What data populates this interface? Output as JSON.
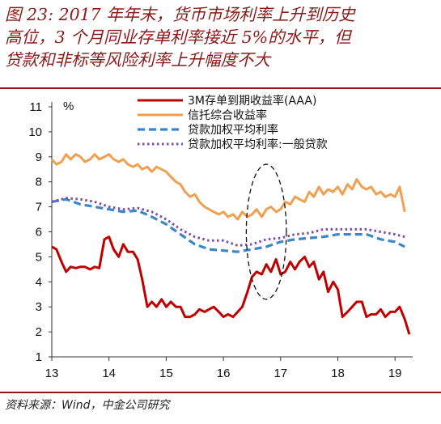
{
  "title_lines": [
    "图 23: 2017 年年末，货币市场利率上升到历史",
    "高位，3 个月同业存单利率接近 5%的水平，但",
    "贷款和非标等风险利率上升幅度不大"
  ],
  "source": "资料来源：Wind，中金公司研究",
  "chart_data": {
    "type": "line",
    "ylabel": "%",
    "ylim": [
      1,
      11
    ],
    "yticks": [
      "1",
      "2",
      "3",
      "4",
      "5",
      "6",
      "7",
      "8",
      "9",
      "10",
      "11"
    ],
    "xlim": [
      2013.0,
      2019.25
    ],
    "xticks": [
      "13",
      "14",
      "15",
      "16",
      "17",
      "18",
      "19"
    ],
    "grid": false,
    "legend_position": "top-center",
    "series": [
      {
        "name": "3M存单到期收益率(AAA)",
        "color": "#c00000",
        "style": "solid",
        "points": [
          [
            2013.0,
            5.4
          ],
          [
            2013.08,
            5.3
          ],
          [
            2013.17,
            4.8
          ],
          [
            2013.25,
            4.4
          ],
          [
            2013.33,
            4.6
          ],
          [
            2013.42,
            4.55
          ],
          [
            2013.5,
            4.6
          ],
          [
            2013.58,
            4.6
          ],
          [
            2013.67,
            4.5
          ],
          [
            2013.75,
            4.6
          ],
          [
            2013.83,
            4.55
          ],
          [
            2013.92,
            5.7
          ],
          [
            2014.0,
            5.8
          ],
          [
            2014.08,
            5.3
          ],
          [
            2014.17,
            5.0
          ],
          [
            2014.25,
            5.5
          ],
          [
            2014.33,
            5.2
          ],
          [
            2014.42,
            5.2
          ],
          [
            2014.5,
            4.9
          ],
          [
            2014.58,
            4.1
          ],
          [
            2014.67,
            3.0
          ],
          [
            2014.75,
            3.2
          ],
          [
            2014.83,
            3.0
          ],
          [
            2014.92,
            3.3
          ],
          [
            2015.0,
            3.0
          ],
          [
            2015.08,
            3.2
          ],
          [
            2015.17,
            3.0
          ],
          [
            2015.25,
            3.0
          ],
          [
            2015.33,
            2.6
          ],
          [
            2015.42,
            2.6
          ],
          [
            2015.5,
            2.7
          ],
          [
            2015.58,
            2.9
          ],
          [
            2015.67,
            2.8
          ],
          [
            2015.75,
            2.9
          ],
          [
            2015.83,
            3.0
          ],
          [
            2015.92,
            2.8
          ],
          [
            2016.0,
            2.6
          ],
          [
            2016.08,
            2.7
          ],
          [
            2016.17,
            2.6
          ],
          [
            2016.25,
            2.8
          ],
          [
            2016.33,
            3.0
          ],
          [
            2016.42,
            3.6
          ],
          [
            2016.5,
            4.2
          ],
          [
            2016.58,
            4.4
          ],
          [
            2016.67,
            4.3
          ],
          [
            2016.75,
            4.7
          ],
          [
            2016.83,
            4.4
          ],
          [
            2016.92,
            4.9
          ],
          [
            2017.0,
            4.3
          ],
          [
            2017.08,
            4.4
          ],
          [
            2017.17,
            4.8
          ],
          [
            2017.25,
            4.5
          ],
          [
            2017.33,
            4.8
          ],
          [
            2017.42,
            5.0
          ],
          [
            2017.5,
            4.6
          ],
          [
            2017.58,
            4.8
          ],
          [
            2017.67,
            4.1
          ],
          [
            2017.75,
            4.4
          ],
          [
            2017.83,
            3.6
          ],
          [
            2017.92,
            4.0
          ],
          [
            2018.0,
            3.7
          ],
          [
            2018.08,
            2.6
          ],
          [
            2018.17,
            2.8
          ],
          [
            2018.25,
            3.0
          ],
          [
            2018.33,
            3.2
          ],
          [
            2018.42,
            3.2
          ],
          [
            2018.5,
            2.6
          ],
          [
            2018.58,
            2.7
          ],
          [
            2018.67,
            2.7
          ],
          [
            2018.75,
            2.9
          ],
          [
            2018.83,
            2.6
          ],
          [
            2018.92,
            2.8
          ],
          [
            2019.0,
            2.8
          ],
          [
            2019.08,
            3.0
          ],
          [
            2019.17,
            2.5
          ],
          [
            2019.25,
            1.9
          ]
        ]
      },
      {
        "name": "信托综合收益率",
        "color": "#f0a050",
        "style": "solid",
        "points": [
          [
            2013.0,
            8.9
          ],
          [
            2013.08,
            8.7
          ],
          [
            2013.17,
            8.8
          ],
          [
            2013.25,
            9.1
          ],
          [
            2013.33,
            8.9
          ],
          [
            2013.42,
            9.1
          ],
          [
            2013.5,
            9.0
          ],
          [
            2013.58,
            8.8
          ],
          [
            2013.67,
            8.9
          ],
          [
            2013.75,
            9.1
          ],
          [
            2013.83,
            8.9
          ],
          [
            2013.92,
            9.0
          ],
          [
            2014.0,
            9.1
          ],
          [
            2014.08,
            8.9
          ],
          [
            2014.17,
            8.8
          ],
          [
            2014.25,
            8.9
          ],
          [
            2014.33,
            8.7
          ],
          [
            2014.42,
            8.6
          ],
          [
            2014.5,
            8.7
          ],
          [
            2014.58,
            8.5
          ],
          [
            2014.67,
            8.6
          ],
          [
            2014.75,
            8.4
          ],
          [
            2014.83,
            8.6
          ],
          [
            2014.92,
            8.5
          ],
          [
            2015.0,
            8.4
          ],
          [
            2015.08,
            8.2
          ],
          [
            2015.17,
            8.0
          ],
          [
            2015.25,
            7.9
          ],
          [
            2015.33,
            7.6
          ],
          [
            2015.42,
            7.4
          ],
          [
            2015.5,
            7.5
          ],
          [
            2015.58,
            7.2
          ],
          [
            2015.67,
            7.0
          ],
          [
            2015.75,
            6.9
          ],
          [
            2015.83,
            6.8
          ],
          [
            2015.92,
            6.7
          ],
          [
            2016.0,
            6.8
          ],
          [
            2016.08,
            6.6
          ],
          [
            2016.17,
            6.7
          ],
          [
            2016.25,
            6.5
          ],
          [
            2016.33,
            6.8
          ],
          [
            2016.42,
            6.6
          ],
          [
            2016.5,
            6.7
          ],
          [
            2016.58,
            6.9
          ],
          [
            2016.67,
            6.6
          ],
          [
            2016.75,
            6.9
          ],
          [
            2016.83,
            7.0
          ],
          [
            2016.92,
            6.8
          ],
          [
            2017.0,
            6.9
          ],
          [
            2017.08,
            7.2
          ],
          [
            2017.17,
            7.1
          ],
          [
            2017.25,
            7.4
          ],
          [
            2017.33,
            7.3
          ],
          [
            2017.42,
            7.2
          ],
          [
            2017.5,
            7.6
          ],
          [
            2017.58,
            7.4
          ],
          [
            2017.67,
            7.8
          ],
          [
            2017.75,
            7.5
          ],
          [
            2017.83,
            7.7
          ],
          [
            2017.92,
            7.6
          ],
          [
            2018.0,
            7.8
          ],
          [
            2018.08,
            7.5
          ],
          [
            2018.17,
            7.9
          ],
          [
            2018.25,
            7.7
          ],
          [
            2018.33,
            8.1
          ],
          [
            2018.42,
            7.8
          ],
          [
            2018.5,
            7.7
          ],
          [
            2018.58,
            7.8
          ],
          [
            2018.67,
            7.5
          ],
          [
            2018.75,
            7.6
          ],
          [
            2018.83,
            7.4
          ],
          [
            2018.92,
            7.5
          ],
          [
            2019.0,
            7.4
          ],
          [
            2019.08,
            7.8
          ],
          [
            2019.17,
            6.8
          ]
        ]
      },
      {
        "name": "贷款加权平均利率",
        "color": "#3a86c8",
        "style": "dashed",
        "points": [
          [
            2013.0,
            7.2
          ],
          [
            2013.25,
            7.3
          ],
          [
            2013.5,
            7.1
          ],
          [
            2013.75,
            7.0
          ],
          [
            2014.0,
            6.9
          ],
          [
            2014.25,
            6.8
          ],
          [
            2014.5,
            6.85
          ],
          [
            2014.75,
            6.6
          ],
          [
            2015.0,
            6.3
          ],
          [
            2015.25,
            5.9
          ],
          [
            2015.5,
            5.5
          ],
          [
            2015.75,
            5.3
          ],
          [
            2016.0,
            5.25
          ],
          [
            2016.25,
            5.2
          ],
          [
            2016.5,
            5.3
          ],
          [
            2016.75,
            5.4
          ],
          [
            2017.0,
            5.6
          ],
          [
            2017.25,
            5.7
          ],
          [
            2017.5,
            5.75
          ],
          [
            2017.75,
            5.8
          ],
          [
            2018.0,
            5.9
          ],
          [
            2018.25,
            5.9
          ],
          [
            2018.5,
            5.9
          ],
          [
            2018.75,
            5.7
          ],
          [
            2019.0,
            5.6
          ],
          [
            2019.17,
            5.4
          ]
        ]
      },
      {
        "name": "贷款加权平均利率:一般贷款",
        "color": "#7a4fa8",
        "style": "dotted",
        "points": [
          [
            2013.0,
            7.2
          ],
          [
            2013.25,
            7.35
          ],
          [
            2013.5,
            7.3
          ],
          [
            2013.75,
            7.2
          ],
          [
            2014.0,
            7.0
          ],
          [
            2014.25,
            6.9
          ],
          [
            2014.5,
            6.95
          ],
          [
            2014.75,
            6.8
          ],
          [
            2015.0,
            6.5
          ],
          [
            2015.25,
            6.1
          ],
          [
            2015.5,
            5.8
          ],
          [
            2015.75,
            5.65
          ],
          [
            2016.0,
            5.65
          ],
          [
            2016.25,
            5.45
          ],
          [
            2016.5,
            5.5
          ],
          [
            2016.75,
            5.7
          ],
          [
            2017.0,
            5.75
          ],
          [
            2017.25,
            5.9
          ],
          [
            2017.5,
            5.95
          ],
          [
            2017.75,
            6.1
          ],
          [
            2018.0,
            6.1
          ],
          [
            2018.25,
            6.1
          ],
          [
            2018.5,
            6.1
          ],
          [
            2018.75,
            6.0
          ],
          [
            2019.0,
            5.9
          ],
          [
            2019.17,
            5.8
          ]
        ]
      }
    ],
    "annotation": {
      "type": "dashed-ellipse",
      "cx": 2016.75,
      "cy": 6.0,
      "rx": 0.35,
      "ry": 2.7
    }
  }
}
